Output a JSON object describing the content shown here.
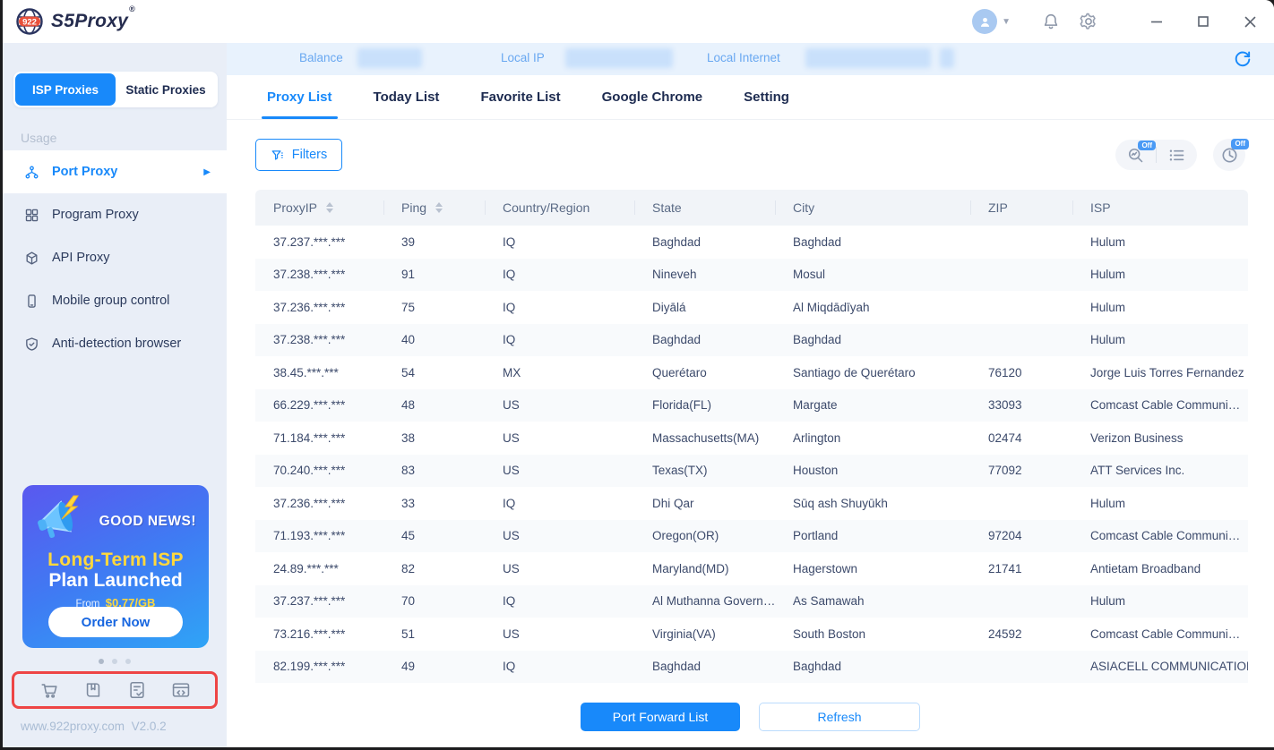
{
  "brand": {
    "badge": "922",
    "name": "S5Proxy",
    "registered": "®"
  },
  "sidebar": {
    "segments": [
      {
        "label": "ISP Proxies",
        "active": true
      },
      {
        "label": "Static Proxies",
        "active": false
      }
    ],
    "usage_label": "Usage",
    "menu": [
      {
        "label": "Port Proxy",
        "icon": "network-icon",
        "active": true
      },
      {
        "label": "Program Proxy",
        "icon": "grid-icon",
        "active": false
      },
      {
        "label": "API Proxy",
        "icon": "cube-icon",
        "active": false
      },
      {
        "label": "Mobile group control",
        "icon": "phone-icon",
        "active": false
      },
      {
        "label": "Anti-detection browser",
        "icon": "shield-icon",
        "active": false
      }
    ],
    "promo": {
      "headline": "GOOD NEWS!",
      "title_line1": "Long-Term ISP",
      "title_line2": "Plan Launched",
      "price_prefix": "From",
      "price": "$0.77",
      "price_unit": "/GB",
      "cta": "Order Now"
    },
    "footer": {
      "site": "www.922proxy.com",
      "version": "V2.0.2"
    }
  },
  "infobar": {
    "balance_label": "Balance",
    "local_ip_label": "Local IP",
    "local_internet_label": "Local Internet"
  },
  "tabs": [
    {
      "label": "Proxy List",
      "active": true
    },
    {
      "label": "Today List",
      "active": false
    },
    {
      "label": "Favorite List",
      "active": false
    },
    {
      "label": "Google Chrome",
      "active": false
    },
    {
      "label": "Setting",
      "active": false
    }
  ],
  "toolbar": {
    "filters_label": "Filters",
    "off_badge": "Off"
  },
  "table": {
    "columns": [
      "ProxyIP",
      "Ping",
      "Country/Region",
      "State",
      "City",
      "ZIP",
      "ISP"
    ],
    "rows": [
      [
        "37.237.***.***",
        "39",
        "IQ",
        "Baghdad",
        "Baghdad",
        "",
        "Hulum"
      ],
      [
        "37.238.***.***",
        "91",
        "IQ",
        "Nineveh",
        "Mosul",
        "",
        "Hulum"
      ],
      [
        "37.236.***.***",
        "75",
        "IQ",
        "Diyālá",
        "Al Miqdādīyah",
        "",
        "Hulum"
      ],
      [
        "37.238.***.***",
        "40",
        "IQ",
        "Baghdad",
        "Baghdad",
        "",
        "Hulum"
      ],
      [
        "38.45.***.***",
        "54",
        "MX",
        "Querétaro",
        "Santiago de Querétaro",
        "76120",
        "Jorge Luis Torres Fernandez"
      ],
      [
        "66.229.***.***",
        "48",
        "US",
        "Florida(FL)",
        "Margate",
        "33093",
        "Comcast Cable Communi…"
      ],
      [
        "71.184.***.***",
        "38",
        "US",
        "Massachusetts(MA)",
        "Arlington",
        "02474",
        "Verizon Business"
      ],
      [
        "70.240.***.***",
        "83",
        "US",
        "Texas(TX)",
        "Houston",
        "77092",
        "ATT Services Inc."
      ],
      [
        "37.236.***.***",
        "33",
        "IQ",
        "Dhi Qar",
        "Sūq ash Shuyūkh",
        "",
        "Hulum"
      ],
      [
        "71.193.***.***",
        "45",
        "US",
        "Oregon(OR)",
        "Portland",
        "97204",
        "Comcast Cable Communi…"
      ],
      [
        "24.89.***.***",
        "82",
        "US",
        "Maryland(MD)",
        "Hagerstown",
        "21741",
        "Antietam Broadband"
      ],
      [
        "37.237.***.***",
        "70",
        "IQ",
        "Al Muthanna Govern…",
        "As Samawah",
        "",
        "Hulum"
      ],
      [
        "73.216.***.***",
        "51",
        "US",
        "Virginia(VA)",
        "South Boston",
        "24592",
        "Comcast Cable Communi…"
      ],
      [
        "82.199.***.***",
        "49",
        "IQ",
        "Baghdad",
        "Baghdad",
        "",
        "ASIACELL COMMUNICATION…"
      ]
    ]
  },
  "footer_buttons": {
    "primary": "Port Forward List",
    "secondary": "Refresh"
  },
  "colors": {
    "accent": "#1889fa",
    "sidebar_bg": "#e9eef7",
    "infobar_bg": "#e8f2fd",
    "promo_yellow": "#ffd83d",
    "highlight_red": "#ee4545",
    "text_dark": "#1d2b50"
  }
}
